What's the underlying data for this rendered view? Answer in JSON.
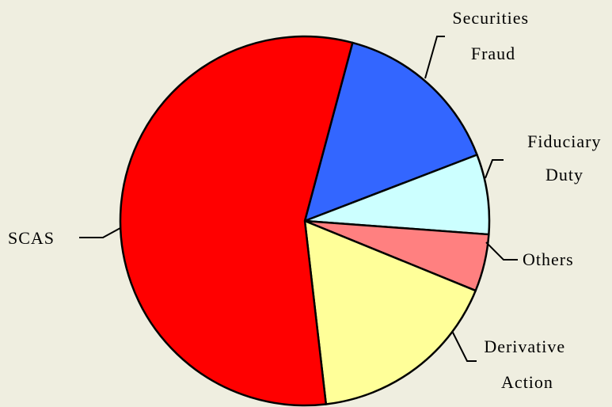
{
  "chart_data": {
    "type": "pie",
    "title": "",
    "slices": [
      {
        "label_lines": [
          "Securities",
          "Fraud"
        ],
        "value": 15,
        "color": "#3366ff"
      },
      {
        "label_lines": [
          "Fiduciary",
          "Duty"
        ],
        "value": 7,
        "color": "#ccffff"
      },
      {
        "label_lines": [
          "Others"
        ],
        "value": 5,
        "color": "#ff8080"
      },
      {
        "label_lines": [
          "Derivative",
          "Action"
        ],
        "value": 17,
        "color": "#ffff99"
      },
      {
        "label_lines": [
          "SCAS"
        ],
        "value": 56,
        "color": "#ff0000"
      }
    ],
    "background": "#efeee0"
  }
}
